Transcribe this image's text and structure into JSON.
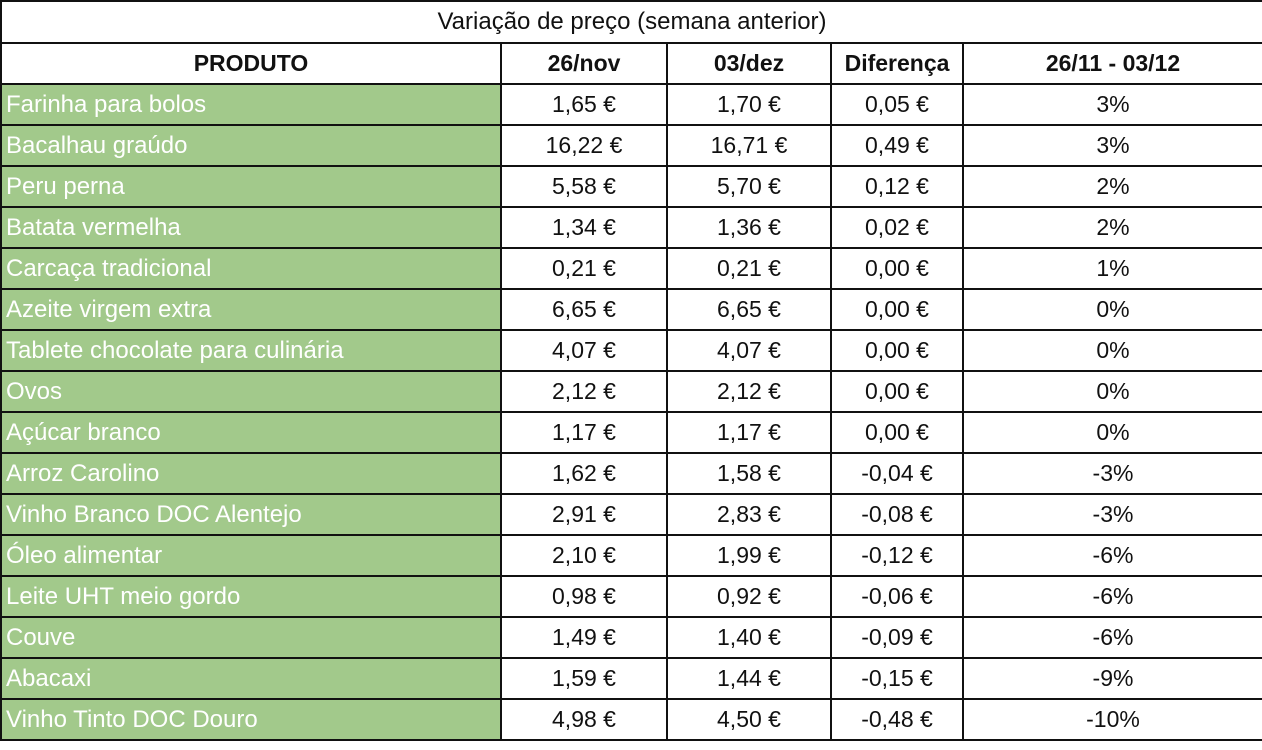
{
  "title": "Variação de preço (semana anterior)",
  "columns": [
    "PRODUTO",
    "26/nov",
    "03/dez",
    "Diferença",
    "26/11 - 03/12"
  ],
  "colors": {
    "product_cell_bg": "#a2c98b",
    "product_text": "#ffffff",
    "border": "#111111"
  },
  "rows": [
    [
      "Farinha para bolos",
      "1,65 €",
      "1,70 €",
      "0,05 €",
      "3%"
    ],
    [
      "Bacalhau graúdo",
      "16,22 €",
      "16,71 €",
      "0,49 €",
      "3%"
    ],
    [
      "Peru perna",
      "5,58 €",
      "5,70 €",
      "0,12 €",
      "2%"
    ],
    [
      "Batata vermelha",
      "1,34 €",
      "1,36 €",
      "0,02 €",
      "2%"
    ],
    [
      "Carcaça tradicional",
      "0,21 €",
      "0,21 €",
      "0,00 €",
      "1%"
    ],
    [
      "Azeite virgem extra",
      "6,65 €",
      "6,65 €",
      "0,00 €",
      "0%"
    ],
    [
      "Tablete chocolate para culinária",
      "4,07 €",
      "4,07 €",
      "0,00 €",
      "0%"
    ],
    [
      "Ovos",
      "2,12 €",
      "2,12 €",
      "0,00 €",
      "0%"
    ],
    [
      "Açúcar branco",
      "1,17 €",
      "1,17 €",
      "0,00 €",
      "0%"
    ],
    [
      "Arroz Carolino",
      "1,62 €",
      "1,58 €",
      "-0,04 €",
      "-3%"
    ],
    [
      "Vinho Branco DOC Alentejo",
      "2,91 €",
      "2,83 €",
      "-0,08 €",
      "-3%"
    ],
    [
      "Óleo alimentar",
      "2,10 €",
      "1,99 €",
      "-0,12 €",
      "-6%"
    ],
    [
      "Leite UHT meio gordo",
      "0,98 €",
      "0,92 €",
      "-0,06 €",
      "-6%"
    ],
    [
      "Couve",
      "1,49 €",
      "1,40 €",
      "-0,09 €",
      "-6%"
    ],
    [
      "Abacaxi",
      "1,59 €",
      "1,44 €",
      "-0,15 €",
      "-9%"
    ],
    [
      "Vinho Tinto DOC Douro",
      "4,98 €",
      "4,50 €",
      "-0,48 €",
      "-10%"
    ]
  ]
}
